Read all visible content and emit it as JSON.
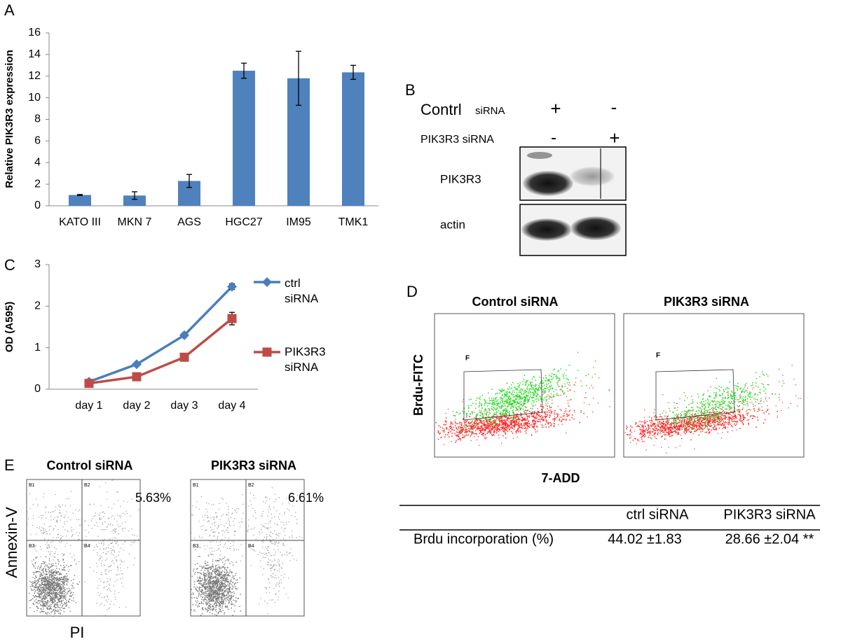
{
  "panel_labels": [
    "A",
    "B",
    "C",
    "D",
    "E"
  ],
  "chart_data": [
    {
      "type": "bar",
      "y_label": "Relative PIK3R3 expression",
      "categories": [
        "KATO III",
        "MKN 7",
        "AGS",
        "HGC27",
        "IM95",
        "TMK1"
      ],
      "values": [
        1.0,
        0.95,
        2.3,
        12.5,
        11.8,
        12.35
      ],
      "errors": [
        0.05,
        0.35,
        0.6,
        0.7,
        2.5,
        0.65
      ],
      "color": "#4f81bd",
      "ylim": [
        0,
        16
      ],
      "yticks": [
        0,
        2,
        4,
        6,
        8,
        10,
        12,
        14,
        16
      ],
      "grid": false
    },
    {
      "type": "line",
      "y_label": "OD (A595)",
      "categories": [
        "day 1",
        "day 2",
        "day 3",
        "day 4"
      ],
      "series": [
        {
          "name": "ctrl siRNA",
          "color": "#4a7ebb",
          "marker": "diamond",
          "values": [
            0.18,
            0.6,
            1.3,
            2.47
          ],
          "errors": [
            0.03,
            0.04,
            0.05,
            0.07
          ]
        },
        {
          "name": "PIK3R3 siRNA",
          "color": "#be4b48",
          "marker": "square",
          "values": [
            0.14,
            0.3,
            0.77,
            1.7
          ],
          "errors": [
            0.03,
            0.03,
            0.04,
            0.15
          ]
        }
      ],
      "ylim": [
        0,
        3
      ],
      "yticks": [
        0,
        1,
        2,
        3
      ],
      "grid": false
    }
  ],
  "blot": {
    "treatments": [
      {
        "label": "Contrl",
        "label_small": "siRNA",
        "lanes": [
          "+",
          "-"
        ]
      },
      {
        "label": "PIK3R3 siRNA",
        "lanes": [
          "-",
          "+"
        ]
      }
    ],
    "bands": [
      "PIK3R3",
      "actin"
    ]
  },
  "flow_brdu": {
    "titles": [
      "Control siRNA",
      "PIK3R3 siRNA"
    ],
    "gate": "F",
    "y_label": "Brdu-FITC",
    "x_label": "7-ADD"
  },
  "table": {
    "header": [
      "ctrl siRNA",
      "PIK3R3 siRNA"
    ],
    "rows": [
      [
        "Brdu incorporation (%)",
        "44.02 ±1.83",
        "28.66 ±2.04 **"
      ]
    ]
  },
  "flow_apoptosis": {
    "titles": [
      "Control siRNA",
      "PIK3R3 siRNA"
    ],
    "percentages": [
      "5.63%",
      "6.61%"
    ],
    "quadrants": [
      "B1",
      "B2",
      "B3",
      "B4"
    ],
    "y_label": "Annexin-V",
    "x_label": "PI"
  }
}
